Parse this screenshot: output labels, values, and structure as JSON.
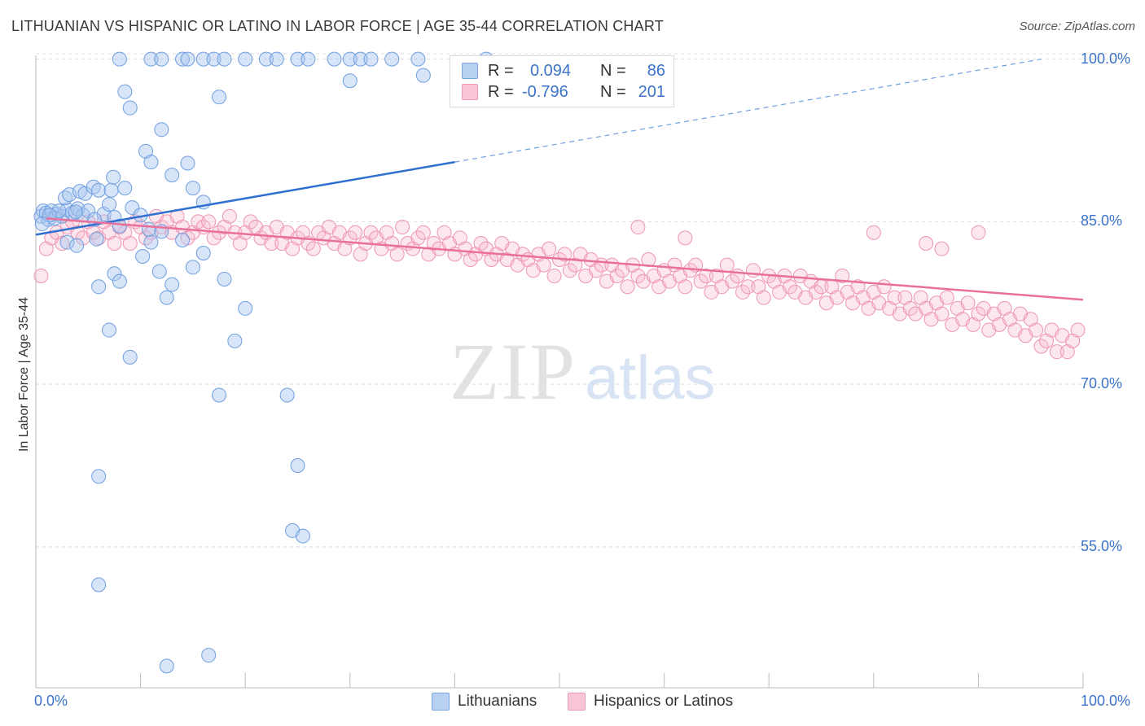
{
  "title": "LITHUANIAN VS HISPANIC OR LATINO IN LABOR FORCE | AGE 35-44 CORRELATION CHART",
  "source": "Source: ZipAtlas.com",
  "watermark": {
    "zip": "ZIP",
    "atlas": "atlas"
  },
  "legend": {
    "rows": [
      {
        "r_label": "R =",
        "r_value": "0.094",
        "n_label": "N =",
        "n_value": "86",
        "color": "#7aa6e6",
        "fill": "#b8d0f2"
      },
      {
        "r_label": "R =",
        "r_value": "-0.796",
        "n_label": "N =",
        "n_value": "201",
        "color": "#ef9ab5",
        "fill": "#f8c6d5"
      }
    ]
  },
  "bottom_legend": [
    {
      "label": "Lithuanians",
      "color": "#7aa6e6",
      "fill": "#b8d0f2"
    },
    {
      "label": "Hispanics or Latinos",
      "color": "#ef9ab5",
      "fill": "#f8c6d5"
    }
  ],
  "chart_data": {
    "type": "scatter",
    "xlabel": "",
    "ylabel": "In Labor Force | Age 35-44",
    "xlim": [
      0,
      100
    ],
    "ylim": [
      42,
      102
    ],
    "x_tick_labels": [
      "0.0%",
      "100.0%"
    ],
    "y_ticks": [
      55,
      70,
      85,
      100
    ],
    "y_tick_labels": [
      "55.0%",
      "70.0%",
      "85.0%",
      "100.0%"
    ],
    "grid": true,
    "series": [
      {
        "name": "Lithuanians",
        "color": "#4a86d8",
        "trend": {
          "x": [
            0,
            40
          ],
          "y": [
            83.8,
            90.5
          ],
          "dashed_to": [
            96,
            100
          ]
        },
        "points": [
          [
            0.5,
            85.5
          ],
          [
            0.7,
            86
          ],
          [
            1,
            85.8
          ],
          [
            1.2,
            85.2
          ],
          [
            1.5,
            86
          ],
          [
            2,
            85.7
          ],
          [
            2.5,
            85.5
          ],
          [
            3,
            86.1
          ],
          [
            3.5,
            85.8
          ],
          [
            4,
            86.2
          ],
          [
            4.5,
            85.6
          ],
          [
            5,
            86
          ],
          [
            1.8,
            85.3
          ],
          [
            2.8,
            87.2
          ],
          [
            3.2,
            87.5
          ],
          [
            4.2,
            87.8
          ],
          [
            4.7,
            87.6
          ],
          [
            5.5,
            88.2
          ],
          [
            6,
            87.9
          ],
          [
            6.5,
            85.7
          ],
          [
            7,
            86.6
          ],
          [
            7.5,
            85.4
          ],
          [
            8,
            84.6
          ],
          [
            3.8,
            85.9
          ],
          [
            2.2,
            86
          ],
          [
            1.3,
            85.6
          ],
          [
            0.6,
            84.8
          ],
          [
            3,
            83.1
          ],
          [
            3.9,
            82.8
          ],
          [
            5.6,
            85.2
          ],
          [
            5.8,
            83.4
          ],
          [
            7.2,
            87.9
          ],
          [
            7.4,
            89.1
          ],
          [
            8.5,
            88.1
          ],
          [
            9.2,
            86.3
          ],
          [
            10,
            85.6
          ],
          [
            11,
            83.1
          ],
          [
            10.8,
            84.3
          ],
          [
            12,
            84.1
          ],
          [
            14,
            83.3
          ],
          [
            15,
            80.8
          ],
          [
            16,
            82.1
          ],
          [
            9,
            95.5
          ],
          [
            10.5,
            91.5
          ],
          [
            11,
            90.5
          ],
          [
            12,
            93.5
          ],
          [
            13,
            89.3
          ],
          [
            14.5,
            90.4
          ],
          [
            15,
            88.1
          ],
          [
            16,
            86.8
          ],
          [
            10.2,
            81.8
          ],
          [
            11.8,
            80.4
          ],
          [
            7.5,
            80.2
          ],
          [
            6,
            79
          ],
          [
            8,
            79.5
          ],
          [
            13,
            79.2
          ],
          [
            12.5,
            78
          ],
          [
            18,
            79.7
          ],
          [
            20,
            77
          ],
          [
            19,
            74
          ],
          [
            7,
            75
          ],
          [
            9,
            72.5
          ],
          [
            17.5,
            69
          ],
          [
            24,
            69
          ],
          [
            6,
            61.5
          ],
          [
            25,
            62.5
          ],
          [
            24.5,
            56.5
          ],
          [
            25.5,
            56
          ],
          [
            6,
            51.5
          ],
          [
            12.5,
            44
          ],
          [
            16.5,
            45
          ],
          [
            8.5,
            97
          ],
          [
            17.5,
            96.5
          ],
          [
            8,
            100
          ],
          [
            11,
            100
          ],
          [
            12,
            100
          ],
          [
            14,
            100
          ],
          [
            14.5,
            100
          ],
          [
            16,
            100
          ],
          [
            17,
            100
          ],
          [
            18,
            100
          ],
          [
            20,
            100
          ],
          [
            22,
            100
          ],
          [
            23,
            100
          ],
          [
            25,
            100
          ],
          [
            26,
            100
          ],
          [
            30,
            100
          ],
          [
            31,
            100
          ],
          [
            32,
            100
          ],
          [
            34,
            100
          ],
          [
            36.5,
            100
          ],
          [
            37,
            98.5
          ],
          [
            43,
            100
          ],
          [
            30,
            98
          ],
          [
            28.5,
            100
          ]
        ]
      },
      {
        "name": "Hispanics or Latinos",
        "color": "#e8709a",
        "trend": {
          "x": [
            1,
            100
          ],
          "y": [
            85.3,
            77.8
          ]
        },
        "points": [
          [
            0.5,
            80
          ],
          [
            1,
            82.5
          ],
          [
            1.5,
            83.5
          ],
          [
            2,
            84
          ],
          [
            2.5,
            83
          ],
          [
            3,
            84.5
          ],
          [
            3.5,
            85
          ],
          [
            4,
            84
          ],
          [
            4.5,
            83.5
          ],
          [
            5,
            85
          ],
          [
            5.5,
            84
          ],
          [
            6,
            83.5
          ],
          [
            6.5,
            85
          ],
          [
            7,
            84
          ],
          [
            7.5,
            83
          ],
          [
            8,
            84.5
          ],
          [
            8.5,
            84
          ],
          [
            9,
            83
          ],
          [
            9.5,
            85
          ],
          [
            10,
            84.5
          ],
          [
            10.5,
            83.5
          ],
          [
            11,
            84
          ],
          [
            11.5,
            85.5
          ],
          [
            12,
            84.5
          ],
          [
            12.5,
            85
          ],
          [
            13,
            84
          ],
          [
            13.5,
            85.5
          ],
          [
            14,
            84.5
          ],
          [
            14.5,
            83.5
          ],
          [
            15,
            84
          ],
          [
            15.5,
            85
          ],
          [
            16,
            84.5
          ],
          [
            16.5,
            85
          ],
          [
            17,
            83.5
          ],
          [
            17.5,
            84
          ],
          [
            18,
            84.5
          ],
          [
            18.5,
            85.5
          ],
          [
            19,
            84
          ],
          [
            19.5,
            83
          ],
          [
            20,
            84
          ],
          [
            20.5,
            85
          ],
          [
            21,
            84.5
          ],
          [
            21.5,
            83.5
          ],
          [
            22,
            84
          ],
          [
            22.5,
            83
          ],
          [
            23,
            84.5
          ],
          [
            23.5,
            83
          ],
          [
            24,
            84
          ],
          [
            24.5,
            82.5
          ],
          [
            25,
            83.5
          ],
          [
            25.5,
            84
          ],
          [
            26,
            83
          ],
          [
            26.5,
            82.5
          ],
          [
            27,
            84
          ],
          [
            27.5,
            83.5
          ],
          [
            28,
            84.5
          ],
          [
            28.5,
            83
          ],
          [
            29,
            84
          ],
          [
            29.5,
            82.5
          ],
          [
            30,
            83.5
          ],
          [
            30.5,
            84
          ],
          [
            31,
            82
          ],
          [
            31.5,
            83
          ],
          [
            32,
            84
          ],
          [
            32.5,
            83.5
          ],
          [
            33,
            82.5
          ],
          [
            33.5,
            84
          ],
          [
            34,
            83
          ],
          [
            34.5,
            82
          ],
          [
            35,
            84.5
          ],
          [
            35.5,
            83
          ],
          [
            36,
            82.5
          ],
          [
            36.5,
            83.5
          ],
          [
            37,
            84
          ],
          [
            37.5,
            82
          ],
          [
            38,
            83
          ],
          [
            38.5,
            82.5
          ],
          [
            39,
            84
          ],
          [
            39.5,
            83
          ],
          [
            40,
            82
          ],
          [
            40.5,
            83.5
          ],
          [
            41,
            82.5
          ],
          [
            41.5,
            81.5
          ],
          [
            42,
            82
          ],
          [
            42.5,
            83
          ],
          [
            43,
            82.5
          ],
          [
            43.5,
            81.5
          ],
          [
            44,
            82
          ],
          [
            44.5,
            83
          ],
          [
            45,
            81.5
          ],
          [
            45.5,
            82.5
          ],
          [
            46,
            81
          ],
          [
            46.5,
            82
          ],
          [
            47,
            81.5
          ],
          [
            47.5,
            80.5
          ],
          [
            48,
            82
          ],
          [
            48.5,
            81
          ],
          [
            49,
            82.5
          ],
          [
            49.5,
            80
          ],
          [
            50,
            81.5
          ],
          [
            50.5,
            82
          ],
          [
            51,
            80.5
          ],
          [
            51.5,
            81
          ],
          [
            52,
            82
          ],
          [
            52.5,
            80
          ],
          [
            53,
            81.5
          ],
          [
            53.5,
            80.5
          ],
          [
            54,
            81
          ],
          [
            54.5,
            79.5
          ],
          [
            55,
            81
          ],
          [
            55.5,
            80
          ],
          [
            56,
            80.5
          ],
          [
            56.5,
            79
          ],
          [
            57,
            81
          ],
          [
            57.5,
            80
          ],
          [
            58,
            79.5
          ],
          [
            58.5,
            81.5
          ],
          [
            59,
            80
          ],
          [
            59.5,
            79
          ],
          [
            60,
            80.5
          ],
          [
            60.5,
            79.5
          ],
          [
            61,
            81
          ],
          [
            61.5,
            80
          ],
          [
            62,
            79
          ],
          [
            62.5,
            80.5
          ],
          [
            63,
            81
          ],
          [
            63.5,
            79.5
          ],
          [
            64,
            80
          ],
          [
            64.5,
            78.5
          ],
          [
            65,
            80
          ],
          [
            65.5,
            79
          ],
          [
            66,
            81
          ],
          [
            66.5,
            79.5
          ],
          [
            67,
            80
          ],
          [
            67.5,
            78.5
          ],
          [
            68,
            79
          ],
          [
            68.5,
            80.5
          ],
          [
            69,
            79
          ],
          [
            69.5,
            78
          ],
          [
            70,
            80
          ],
          [
            70.5,
            79.5
          ],
          [
            71,
            78.5
          ],
          [
            71.5,
            80
          ],
          [
            72,
            79
          ],
          [
            72.5,
            78.5
          ],
          [
            73,
            80
          ],
          [
            73.5,
            78
          ],
          [
            74,
            79.5
          ],
          [
            74.5,
            78.5
          ],
          [
            75,
            79
          ],
          [
            75.5,
            77.5
          ],
          [
            76,
            79
          ],
          [
            76.5,
            78
          ],
          [
            77,
            80
          ],
          [
            77.5,
            78.5
          ],
          [
            78,
            77.5
          ],
          [
            78.5,
            79
          ],
          [
            79,
            78
          ],
          [
            79.5,
            77
          ],
          [
            80,
            78.5
          ],
          [
            80.5,
            77.5
          ],
          [
            81,
            79
          ],
          [
            81.5,
            77
          ],
          [
            82,
            78
          ],
          [
            82.5,
            76.5
          ],
          [
            83,
            78
          ],
          [
            83.5,
            77
          ],
          [
            84,
            76.5
          ],
          [
            84.5,
            78
          ],
          [
            85,
            77
          ],
          [
            85.5,
            76
          ],
          [
            86,
            77.5
          ],
          [
            86.5,
            76.5
          ],
          [
            87,
            78
          ],
          [
            87.5,
            75.5
          ],
          [
            88,
            77
          ],
          [
            88.5,
            76
          ],
          [
            89,
            77.5
          ],
          [
            89.5,
            75.5
          ],
          [
            90,
            76.5
          ],
          [
            90.5,
            77
          ],
          [
            91,
            75
          ],
          [
            91.5,
            76.5
          ],
          [
            92,
            75.5
          ],
          [
            92.5,
            77
          ],
          [
            93,
            76
          ],
          [
            93.5,
            75
          ],
          [
            94,
            76.5
          ],
          [
            94.5,
            74.5
          ],
          [
            95,
            76
          ],
          [
            95.5,
            75
          ],
          [
            96,
            73.5
          ],
          [
            96.5,
            74
          ],
          [
            97,
            75
          ],
          [
            97.5,
            73
          ],
          [
            98,
            74.5
          ],
          [
            98.5,
            73
          ],
          [
            99,
            74
          ],
          [
            99.5,
            75
          ],
          [
            57.5,
            84.5
          ],
          [
            62,
            83.5
          ],
          [
            80,
            84
          ],
          [
            85,
            83
          ],
          [
            86.5,
            82.5
          ],
          [
            90,
            84
          ]
        ]
      }
    ]
  }
}
